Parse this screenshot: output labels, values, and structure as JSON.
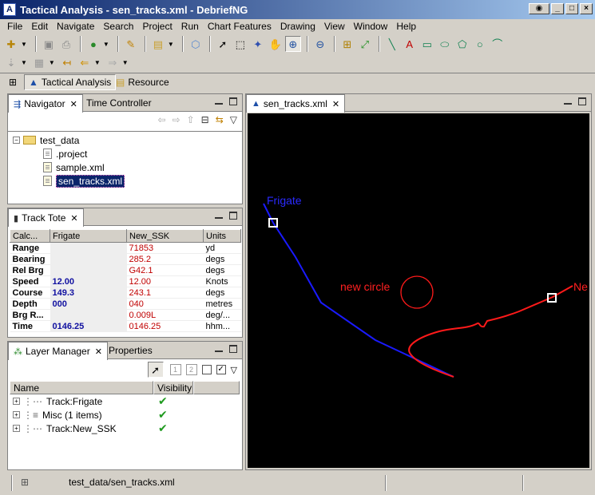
{
  "window": {
    "title": "Tactical Analysis - sen_tracks.xml - DebriefNG",
    "app_icon": "debrief-app-icon"
  },
  "menu": [
    "File",
    "Edit",
    "Navigate",
    "Search",
    "Project",
    "Run",
    "Chart Features",
    "Drawing",
    "View",
    "Window",
    "Help"
  ],
  "perspectives": {
    "tactical": "Tactical Analysis",
    "resource": "Resource"
  },
  "navigator": {
    "tab_navigator": "Navigator",
    "tab_time": "Time Controller",
    "root": "test_data",
    "files": [
      ".project",
      "sample.xml",
      "sen_tracks.xml"
    ]
  },
  "tote": {
    "tab": "Track Tote",
    "headers": [
      "Calc...",
      "Frigate",
      "New_SSK",
      "Units"
    ],
    "rows": [
      {
        "label": "Range",
        "primary": "",
        "secondary": "71853",
        "units": "yd"
      },
      {
        "label": "Bearing",
        "primary": "",
        "secondary": "285.2",
        "units": "degs"
      },
      {
        "label": "Rel Brg",
        "primary": "",
        "secondary": "G42.1",
        "units": "degs"
      },
      {
        "label": "Speed",
        "primary": "12.00",
        "secondary": "12.00",
        "units": "Knots"
      },
      {
        "label": "Course",
        "primary": "149.3",
        "secondary": "243.1",
        "units": "degs"
      },
      {
        "label": "Depth",
        "primary": "000",
        "secondary": "040",
        "units": "metres"
      },
      {
        "label": "Brg R...",
        "primary": "",
        "secondary": "0.009L",
        "units": "deg/..."
      },
      {
        "label": "Time",
        "primary": "0146.25",
        "secondary": "0146.25",
        "units": "hhm..."
      }
    ]
  },
  "layers": {
    "tab_layers": "Layer Manager",
    "tab_props": "Properties",
    "col_name": "Name",
    "col_visibility": "Visibility",
    "items": [
      "Track:Frigate",
      "Misc (1 items)",
      "Track:New_SSK"
    ],
    "btn1": "1",
    "btn2": "2"
  },
  "editor": {
    "tab": "sen_tracks.xml",
    "labels": {
      "frigate": "Frigate",
      "circle": "new circle",
      "ssk": "Ne"
    },
    "colors": {
      "frigate": "#0000ff",
      "ssk": "#ff0000",
      "background": "#000000"
    }
  },
  "status": {
    "path": "test_data/sen_tracks.xml"
  }
}
